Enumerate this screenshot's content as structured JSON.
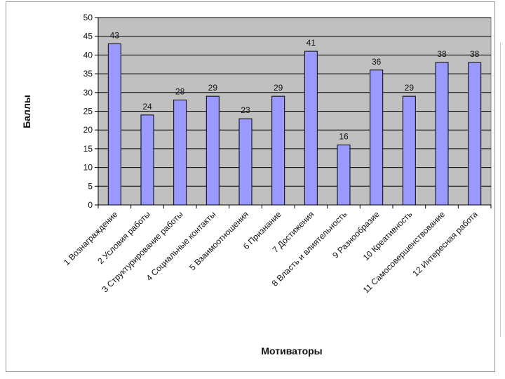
{
  "chart_data": {
    "type": "bar",
    "title": "",
    "xlabel": "Мотиваторы",
    "ylabel": "Баллы",
    "ylim": [
      0,
      50
    ],
    "yticks": [
      0,
      5,
      10,
      15,
      20,
      25,
      30,
      35,
      40,
      45,
      50
    ],
    "grid": true,
    "categories": [
      "1 Вознаграждение",
      "2 Условия работы",
      "3 Структурирование работы",
      "4 Социальные контакты",
      "5 Взаимоотношения",
      "6 Признание",
      "7 Достижения",
      "8 Власть и влиятельность",
      "9 Разнообразие",
      "10 Креативность",
      "11 Самосовершенствование",
      "12 Интересная работа"
    ],
    "values": [
      43,
      24,
      28,
      29,
      23,
      29,
      41,
      16,
      36,
      29,
      38,
      38
    ],
    "colors": {
      "bar": "#9999ff",
      "bar_stroke": "#000000",
      "plot_bg": "#c0c0c0",
      "grid": "#000000"
    }
  }
}
